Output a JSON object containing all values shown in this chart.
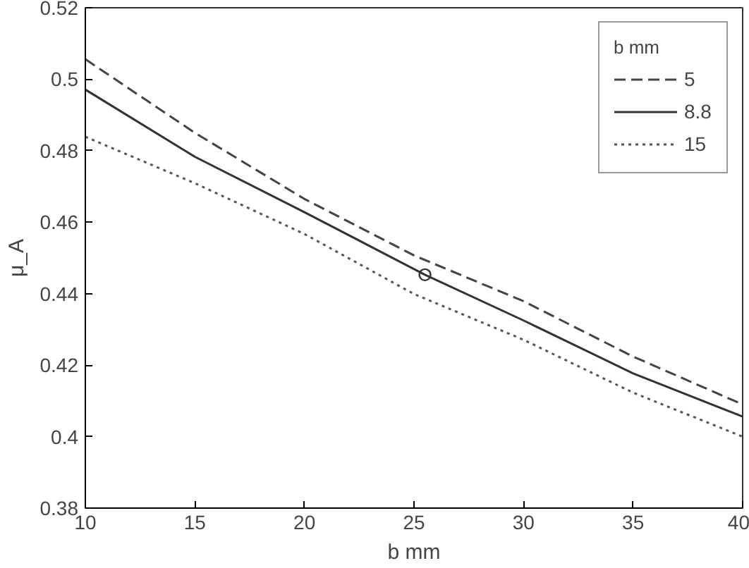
{
  "chart_data": {
    "type": "line",
    "xlabel": "b mm",
    "ylabel": "μ_A",
    "legend_title": "b mm",
    "legend": "top right",
    "grid": false,
    "xlim": [
      10,
      40
    ],
    "ylim": [
      0.38,
      0.52
    ],
    "xticks": [
      10,
      15,
      20,
      25,
      30,
      35,
      40
    ],
    "yticks": [
      0.38,
      0.4,
      0.42,
      0.44,
      0.46,
      0.48,
      0.5,
      0.52
    ],
    "series": [
      {
        "name": "5",
        "color": "#444444",
        "line_style": "dashed",
        "x": [
          10,
          15,
          20,
          25,
          30,
          35,
          40
        ],
        "values": [
          0.5056,
          0.485,
          0.4665,
          0.4507,
          0.4379,
          0.4224,
          0.409
        ]
      },
      {
        "name": "8.8",
        "color": "#333333",
        "line_style": "solid",
        "x": [
          10,
          15,
          20,
          25.5,
          30,
          35,
          40
        ],
        "values": [
          0.4971,
          0.4783,
          0.4628,
          0.4453,
          0.4325,
          0.4177,
          0.4056
        ]
      },
      {
        "name": "15",
        "color": "#555555",
        "line_style": "dotted",
        "x": [
          10,
          15,
          20,
          25,
          30,
          35,
          40
        ],
        "values": [
          0.4839,
          0.4709,
          0.4567,
          0.4399,
          0.4271,
          0.4123,
          0.4
        ]
      },
      {
        "type": "scatter",
        "marker": "circle",
        "color": "#333333",
        "x": [
          25.5
        ],
        "values": [
          0.4453
        ]
      }
    ]
  }
}
